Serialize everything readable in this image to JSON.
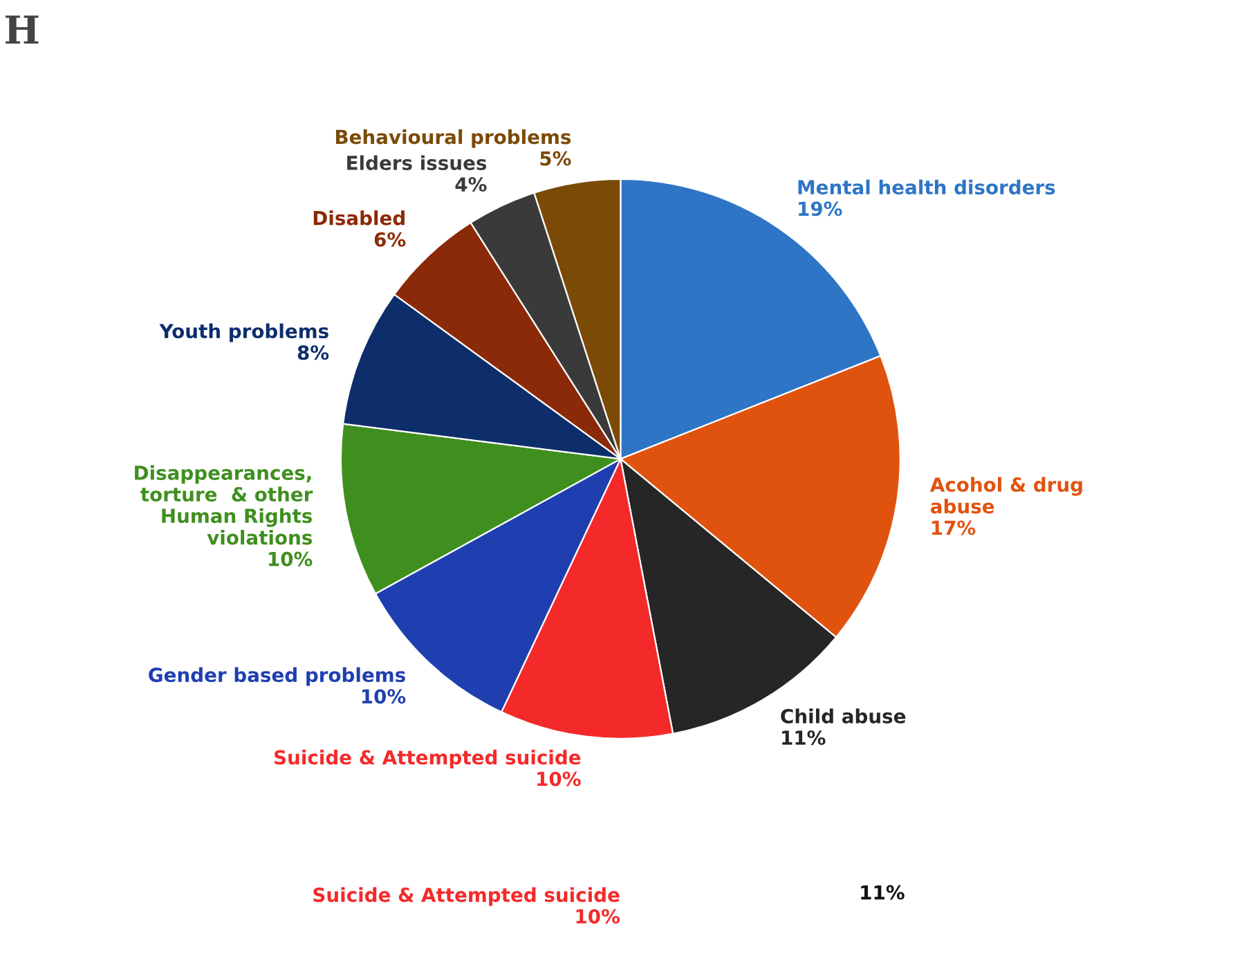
{
  "chart_data": {
    "type": "pie",
    "categories": [
      "Mental health disorders",
      "Acohol & drug\nabuse",
      "Child abuse",
      "Suicide & Attempted suicide",
      "Gender based problems",
      "Disappearances,\ntorture  & other\nHuman Rights\nviolations",
      "Youth problems",
      "Disabled",
      "Elders issues",
      "Behavioural problems"
    ],
    "values": [
      19,
      17,
      11,
      10,
      10,
      10,
      8,
      6,
      4,
      5
    ],
    "value_labels": [
      "19%",
      "17%",
      "11%",
      "10%",
      "10%",
      "10%",
      "8%",
      "6%",
      "4%",
      "5%"
    ],
    "colors": [
      "#2e75c6",
      "#e0530f",
      "#262626",
      "#f42a2a",
      "#1f3fb0",
      "#3f8f1f",
      "#0d2d6b",
      "#8b2a08",
      "#3a3a3a",
      "#7a4a06"
    ],
    "annotations": [
      "H",
      "Suicide & Attempted suicide\n10%",
      "11%"
    ]
  }
}
